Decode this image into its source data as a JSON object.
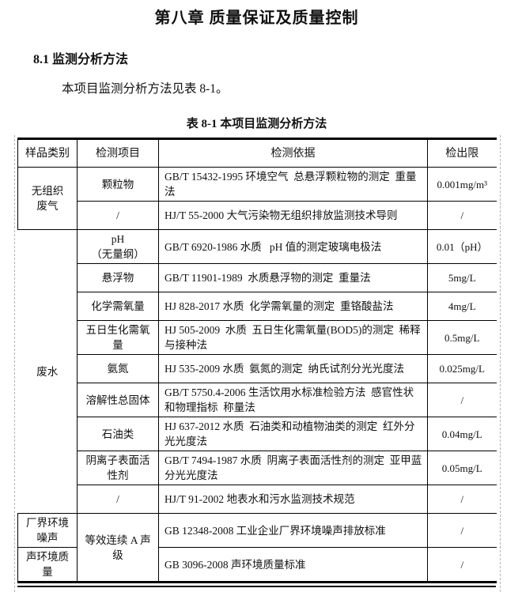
{
  "colors": {
    "text": "#111111",
    "table_border": "#000000",
    "gridline": "#b4b4b4",
    "background": "#ffffff"
  },
  "page": {
    "chapter_title": "第八章 质量保证及质量控制",
    "section_heading": "8.1 监测分析方法",
    "intro_paragraph": "本项目监测分析方法见表 8-1。",
    "table_caption": "表 8-1 本项目监测分析方法"
  },
  "table": {
    "headers": [
      "样品类别",
      "检测项目",
      "检测依据",
      "检出限"
    ],
    "rows": [
      {
        "sample": {
          "text": "无组织\n废气",
          "rowspan": 2
        },
        "item": "颗粒物",
        "basis": "GB/T 15432-1995 环境空气  总悬浮颗粒物的测定  重量法",
        "limit": "0.001mg/m³"
      },
      {
        "item": "/",
        "basis": "HJ/T 55-2000 大气污染物无组织排放监测技术导则",
        "limit": "/"
      },
      {
        "sample": {
          "text": "废水",
          "rowspan": 9
        },
        "item": "pH\n（无量纲）",
        "basis": "GB/T 6920-1986 水质   pH 值的测定玻璃电极法",
        "limit": "0.01（pH）"
      },
      {
        "item": "悬浮物",
        "basis": "GB/T 11901-1989  水质悬浮物的测定  重量法",
        "limit": "5mg/L"
      },
      {
        "item": "化学需氧量",
        "basis": "HJ 828-2017 水质  化学需氧量的测定  重铬酸盐法",
        "limit": "4mg/L"
      },
      {
        "item": "五日生化需氧\n量",
        "basis": "HJ 505-2009  水质  五日生化需氧量(BOD5)的测定  稀释与接种法",
        "limit": "0.5mg/L"
      },
      {
        "item": "氨氮",
        "basis": "HJ 535-2009 水质  氨氮的测定  纳氏试剂分光光度法",
        "limit": "0.025mg/L"
      },
      {
        "item": "溶解性总固体",
        "basis": "GB/T 5750.4-2006 生活饮用水标准检验方法  感官性状和物理指标  称量法",
        "limit": "/"
      },
      {
        "item": "石油类",
        "basis": "HJ 637-2012 水质  石油类和动植物油类的测定  红外分光光度法",
        "limit": "0.04mg/L"
      },
      {
        "item": "阴离子表面活\n性剂",
        "basis": "GB/T 7494-1987 水质  阴离子表面活性剂的测定  亚甲蓝分光光度法",
        "limit": "0.05mg/L"
      },
      {
        "item": "/",
        "basis": "HJ/T 91-2002 地表水和污水监测技术规范",
        "limit": "/"
      },
      {
        "sample": {
          "text": "厂界环境\n噪声"
        },
        "item": {
          "text": "等效连续 A 声\n级",
          "rowspan": 2
        },
        "basis": "GB 12348-2008 工业企业厂界环境噪声排放标准",
        "limit": "/"
      },
      {
        "sample": {
          "text": "声环境质\n量"
        },
        "basis": "GB 3096-2008 声环境质量标准",
        "limit": "/"
      }
    ]
  }
}
